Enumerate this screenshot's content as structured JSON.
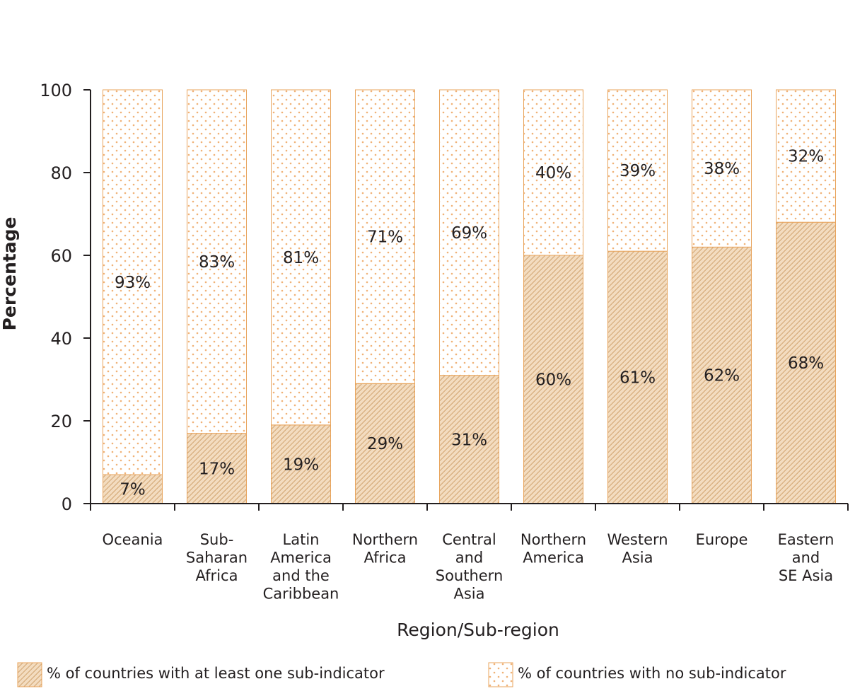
{
  "chart_data": {
    "type": "bar",
    "stacked": true,
    "categories": [
      "Oceania",
      "Sub-Saharan Africa",
      "Latin America and the Caribbean",
      "Northern Africa",
      "Central and Southern Asia",
      "Northern America",
      "Western Asia",
      "Europe",
      "Eastern and SE Asia"
    ],
    "category_label_lines": [
      [
        "Oceania"
      ],
      [
        "Sub-",
        "Saharan",
        "Africa"
      ],
      [
        "Latin",
        "America",
        "and the",
        "Caribbean"
      ],
      [
        "Northern",
        "Africa"
      ],
      [
        "Central",
        "and",
        "Southern",
        "Asia"
      ],
      [
        "Northern",
        "America"
      ],
      [
        "Western",
        "Asia"
      ],
      [
        "Europe"
      ],
      [
        "Eastern",
        "and",
        "SE Asia"
      ]
    ],
    "series": [
      {
        "name": "% of countries with at least one sub-indicator",
        "values": [
          7,
          17,
          19,
          29,
          31,
          60,
          61,
          62,
          68
        ],
        "labels": [
          "7%",
          "17%",
          "19%",
          "29%",
          "31%",
          "60%",
          "61%",
          "62%",
          "68%"
        ],
        "pattern": "hatch"
      },
      {
        "name": "% of countries with no sub-indicator",
        "values": [
          93,
          83,
          81,
          71,
          69,
          40,
          39,
          38,
          32
        ],
        "labels": [
          "93%",
          "83%",
          "81%",
          "71%",
          "69%",
          "40%",
          "39%",
          "38%",
          "32%"
        ],
        "pattern": "dots"
      }
    ],
    "xlabel": "Region/Sub-region",
    "ylabel": "Percentage",
    "ylim": [
      0,
      100
    ],
    "yticks": [
      0,
      20,
      40,
      60,
      80,
      100
    ],
    "grid": false,
    "legend_position": "bottom"
  },
  "colors": {
    "bar_outline": "#e8a45c",
    "hatch_fill": "#f3dcc0",
    "hatch_line": "#c8955a",
    "dot_fill": "#ffffff",
    "dot_color": "#f0b277",
    "axis": "#231f20",
    "text": "#231f20"
  }
}
